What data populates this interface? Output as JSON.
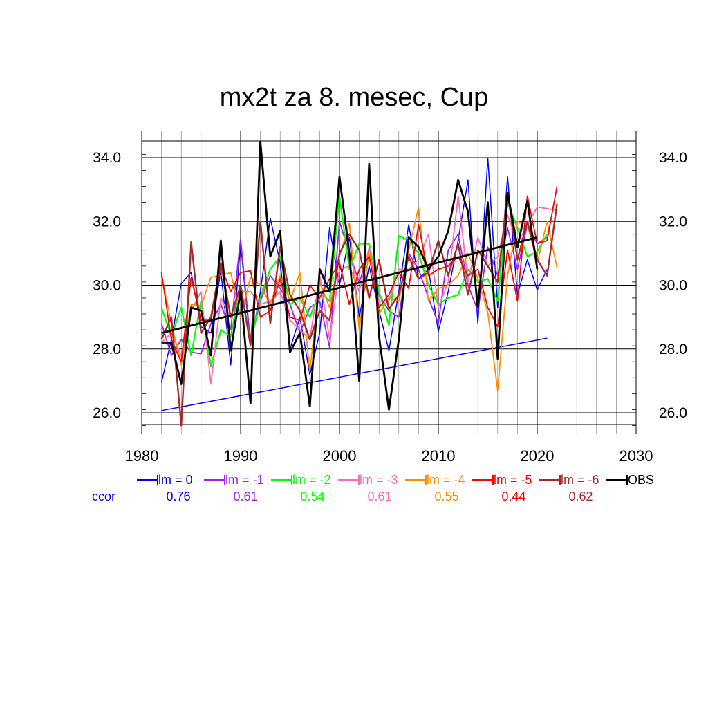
{
  "title": "mx2t za 8. mesec, Cup",
  "ccor_label": "ccor",
  "chart_data": {
    "type": "line",
    "title": "mx2t za 8. mesec, Cup",
    "xlim": [
      1980,
      2030
    ],
    "ylim": [
      25.6,
      34.5
    ],
    "x_ticks": [
      "1980",
      "1990",
      "2000",
      "2010",
      "2020",
      "2030"
    ],
    "y_ticks": [
      "26.0",
      "28.0",
      "30.0",
      "32.0",
      "34.0"
    ],
    "grid": true,
    "legend_position": "bottom",
    "series": [
      {
        "name": "lm = 0",
        "color": "#0000ff",
        "width": 1.5,
        "x": [
          1982,
          1983,
          1984,
          1985,
          1986,
          1987,
          1988,
          1989,
          1990,
          1991,
          1992,
          1993,
          1994,
          1995,
          1996,
          1997,
          1998,
          1999,
          2000,
          2001,
          2002,
          2003,
          2004,
          2005,
          2006,
          2007,
          2008,
          2009,
          2010,
          2011,
          2012,
          2013,
          2014,
          2015,
          2016,
          2017,
          2018,
          2019,
          2020,
          2021
        ],
        "values": [
          26.95,
          28.3,
          30.05,
          30.4,
          28.7,
          28.5,
          30.45,
          27.5,
          31.3,
          28.1,
          29.8,
          32.1,
          30.7,
          28.0,
          29.0,
          27.2,
          28.5,
          31.8,
          30.0,
          31.5,
          29.0,
          30.6,
          29.2,
          27.95,
          29.8,
          31.9,
          30.2,
          30.5,
          28.55,
          29.8,
          31.4,
          33.3,
          28.8,
          34.0,
          29.3,
          33.4,
          29.7,
          30.8,
          29.85,
          30.5
        ]
      },
      {
        "name": "lm = 0 trend",
        "color": "#0000ff",
        "width": 1.5,
        "x": [
          1982,
          2021
        ],
        "values": [
          26.07,
          28.34
        ]
      },
      {
        "name": "lm = -1",
        "color": "#a020f0",
        "width": 1.8,
        "x": [
          1982,
          1983,
          1984,
          1985,
          1986,
          1987,
          1988,
          1989,
          1990,
          1991,
          1992,
          1993,
          1994,
          1995,
          1996,
          1997,
          1998,
          1999,
          2000,
          2001,
          2002,
          2003,
          2004,
          2005,
          2006,
          2007,
          2008,
          2009,
          2010,
          2011,
          2012,
          2013,
          2014,
          2015,
          2016,
          2017,
          2018,
          2019,
          2020,
          2021
        ],
        "values": [
          28.8,
          27.8,
          28.3,
          27.9,
          27.85,
          28.8,
          29.4,
          28.6,
          31.45,
          28.2,
          29.5,
          30.3,
          29.9,
          29.4,
          28.5,
          29.3,
          29.5,
          28.05,
          32.0,
          31.0,
          30.1,
          31.0,
          29.7,
          29.2,
          29.0,
          31.0,
          30.5,
          29.6,
          28.8,
          31.1,
          31.6,
          30.0,
          29.2,
          31.2,
          30.3,
          31.8,
          30.5,
          31.9,
          31.3,
          31.5
        ]
      },
      {
        "name": "lm = -2",
        "color": "#00ff00",
        "width": 2.2,
        "x": [
          1982,
          1983,
          1984,
          1985,
          1986,
          1987,
          1988,
          1989,
          1990,
          1991,
          1992,
          1993,
          1994,
          1995,
          1996,
          1997,
          1998,
          1999,
          2000,
          2001,
          2002,
          2003,
          2004,
          2005,
          2006,
          2007,
          2008,
          2009,
          2010,
          2011,
          2012,
          2013,
          2014,
          2015,
          2016,
          2017,
          2018,
          2019,
          2020,
          2021
        ],
        "values": [
          29.3,
          28.4,
          29.3,
          27.8,
          29.5,
          27.45,
          28.6,
          28.4,
          30.0,
          28.2,
          29.6,
          30.5,
          30.9,
          29.4,
          29.6,
          29.0,
          29.8,
          29.5,
          32.8,
          30.5,
          31.3,
          31.3,
          29.8,
          28.75,
          31.55,
          31.4,
          31.0,
          30.0,
          29.4,
          29.6,
          29.7,
          30.5,
          30.1,
          30.2,
          29.5,
          32.6,
          31.8,
          30.9,
          31.05,
          31.6
        ]
      },
      {
        "name": "lm = -3",
        "color": "#ff69b4",
        "width": 1.8,
        "x": [
          1982,
          1983,
          1984,
          1985,
          1986,
          1987,
          1988,
          1989,
          1990,
          1991,
          1992,
          1993,
          1994,
          1995,
          1996,
          1997,
          1998,
          1999,
          2000,
          2001,
          2002,
          2003,
          2004,
          2005,
          2006,
          2007,
          2008,
          2009,
          2010,
          2011,
          2012,
          2013,
          2014,
          2015,
          2016,
          2017,
          2018,
          2019,
          2020,
          2021,
          2022
        ],
        "values": [
          28.2,
          28.5,
          27.8,
          29.2,
          29.8,
          26.9,
          29.6,
          29.0,
          29.8,
          29.8,
          29.4,
          29.5,
          29.8,
          28.9,
          28.6,
          28.3,
          30.3,
          28.3,
          30.5,
          30.6,
          29.8,
          31.2,
          29.5,
          29.5,
          30.5,
          30.5,
          30.8,
          31.6,
          29.3,
          30.1,
          32.8,
          30.1,
          31.5,
          30.6,
          30.9,
          32.2,
          31.3,
          31.9,
          32.45,
          32.4,
          32.35
        ]
      },
      {
        "name": "lm = -4",
        "color": "#ff8c00",
        "width": 1.8,
        "x": [
          1982,
          1983,
          1984,
          1985,
          1986,
          1987,
          1988,
          1989,
          1990,
          1991,
          1992,
          1993,
          1994,
          1995,
          1996,
          1997,
          1998,
          1999,
          2000,
          2001,
          2002,
          2003,
          2004,
          2005,
          2006,
          2007,
          2008,
          2009,
          2010,
          2011,
          2012,
          2013,
          2014,
          2015,
          2016,
          2017,
          2018,
          2019,
          2020,
          2021,
          2022
        ],
        "values": [
          30.3,
          28.8,
          27.5,
          29.4,
          29.35,
          30.25,
          30.3,
          30.4,
          29.0,
          30.25,
          30.0,
          29.4,
          30.3,
          29.5,
          30.4,
          27.3,
          30.1,
          29.3,
          30.9,
          31.95,
          28.6,
          31.1,
          29.1,
          29.6,
          29.5,
          31.1,
          32.45,
          29.5,
          29.9,
          30.0,
          30.3,
          31.0,
          30.2,
          29.15,
          26.7,
          30.3,
          32.0,
          31.9,
          30.7,
          32.0,
          30.55
        ]
      },
      {
        "name": "lm = -5",
        "color": "#ff0000",
        "width": 1.8,
        "x": [
          1982,
          1983,
          1984,
          1985,
          1986,
          1987,
          1988,
          1989,
          1990,
          1991,
          1992,
          1993,
          1994,
          1995,
          1996,
          1997,
          1998,
          1999,
          2000,
          2001,
          2002,
          2003,
          2004,
          2005,
          2006,
          2007,
          2008,
          2009,
          2010,
          2011,
          2012,
          2013,
          2014,
          2015,
          2016,
          2017,
          2018,
          2019,
          2020,
          2021,
          2022
        ],
        "values": [
          30.4,
          28.3,
          27.6,
          30.25,
          28.9,
          28.9,
          30.6,
          29.8,
          30.4,
          30.45,
          29.0,
          29.2,
          30.2,
          29.0,
          28.9,
          30.0,
          29.6,
          30.2,
          30.7,
          29.4,
          30.5,
          30.9,
          29.3,
          29.7,
          30.4,
          29.9,
          31.9,
          30.3,
          30.5,
          30.6,
          30.9,
          30.3,
          30.5,
          29.3,
          28.7,
          31.1,
          29.5,
          32.8,
          31.3,
          31.4,
          33.1
        ]
      },
      {
        "name": "lm = -6",
        "color": "#a52a2a",
        "width": 2.4,
        "x": [
          1982,
          1983,
          1984,
          1985,
          1986,
          1987,
          1988,
          1989,
          1990,
          1991,
          1992,
          1993,
          1994,
          1995,
          1996,
          1997,
          1998,
          1999,
          2000,
          2001,
          2002,
          2003,
          2004,
          2005,
          2006,
          2007,
          2008,
          2009,
          2010,
          2011,
          2012,
          2013,
          2014,
          2015,
          2016,
          2017,
          2018,
          2019,
          2020,
          2021,
          2022
        ],
        "values": [
          28.3,
          29.0,
          25.6,
          31.35,
          28.5,
          29.0,
          30.7,
          29.0,
          30.0,
          28.1,
          32.0,
          28.8,
          31.2,
          29.7,
          29.2,
          28.3,
          29.2,
          28.9,
          31.0,
          31.6,
          31.1,
          29.6,
          30.8,
          29.25,
          29.7,
          30.9,
          30.2,
          30.4,
          31.4,
          30.3,
          31.3,
          29.7,
          31.1,
          30.6,
          30.1,
          32.9,
          30.8,
          32.0,
          30.8,
          30.3,
          32.55
        ]
      },
      {
        "name": "OBS",
        "color": "#000000",
        "width": 2.8,
        "x": [
          1982,
          1983,
          1984,
          1985,
          1986,
          1987,
          1988,
          1989,
          1990,
          1991,
          1992,
          1993,
          1994,
          1995,
          1996,
          1997,
          1998,
          1999,
          2000,
          2001,
          2002,
          2003,
          2004,
          2005,
          2006,
          2007,
          2008,
          2009,
          2010,
          2011,
          2012,
          2013,
          2014,
          2015,
          2016,
          2017,
          2018,
          2019,
          2020
        ],
        "values": [
          28.2,
          28.2,
          26.9,
          29.3,
          29.2,
          27.8,
          31.4,
          27.95,
          29.8,
          26.3,
          34.5,
          30.9,
          31.7,
          27.9,
          28.5,
          26.2,
          30.5,
          29.8,
          33.4,
          31.0,
          27.0,
          33.8,
          28.4,
          26.1,
          28.3,
          31.5,
          31.2,
          30.5,
          30.9,
          31.7,
          33.3,
          32.3,
          29.3,
          32.6,
          27.7,
          32.9,
          31.2,
          32.65,
          30.5
        ]
      },
      {
        "name": "OBS trend",
        "color": "#000000",
        "width": 2.8,
        "x": [
          1982,
          2020
        ],
        "values": [
          28.5,
          31.5
        ]
      }
    ],
    "legend": [
      {
        "label": "lm = 0",
        "color": "#0000ff",
        "ccor": "0.76"
      },
      {
        "label": "lm = -1",
        "color": "#a020f0",
        "ccor": "0.61"
      },
      {
        "label": "lm = -2",
        "color": "#00ff00",
        "ccor": "0.54"
      },
      {
        "label": "lm = -3",
        "color": "#ff69b4",
        "ccor": "0.61"
      },
      {
        "label": "lm = -4",
        "color": "#ff8c00",
        "ccor": "0.55"
      },
      {
        "label": "lm = -5",
        "color": "#ff0000",
        "ccor": "0.44"
      },
      {
        "label": "lm = -6",
        "color": "#a52a2a",
        "ccor": "0.62"
      },
      {
        "label": "OBS",
        "color": "#000000",
        "ccor": ""
      }
    ]
  }
}
